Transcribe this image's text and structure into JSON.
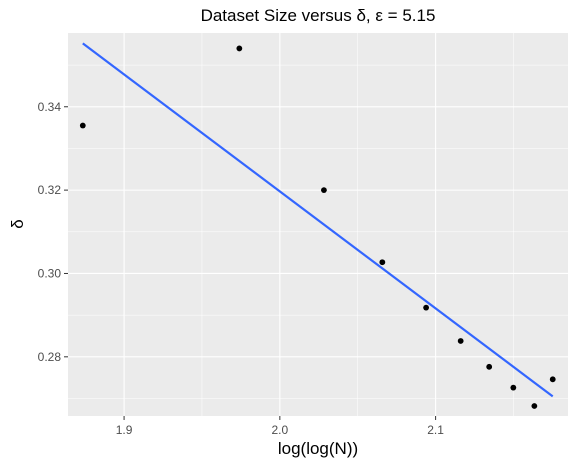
{
  "chart_data": {
    "type": "scatter",
    "title": "Dataset Size versus δ, ε = 5.15",
    "xlabel": "log(log(N))",
    "ylabel": "δ",
    "xlim": [
      1.864,
      2.185
    ],
    "ylim": [
      0.2658,
      0.3577
    ],
    "x_ticks": [
      1.9,
      2.0,
      2.1
    ],
    "x_tick_labels": [
      "1.9",
      "2.0",
      "2.1"
    ],
    "y_ticks": [
      0.28,
      0.3,
      0.32,
      0.34
    ],
    "y_tick_labels": [
      "0.28",
      "0.30",
      "0.32",
      "0.34"
    ],
    "grid": true,
    "points": [
      {
        "x": 1.8735,
        "y": 0.3355
      },
      {
        "x": 1.974,
        "y": 0.354
      },
      {
        "x": 2.0283,
        "y": 0.32
      },
      {
        "x": 2.0658,
        "y": 0.3027
      },
      {
        "x": 2.0939,
        "y": 0.2918
      },
      {
        "x": 2.1161,
        "y": 0.2838
      },
      {
        "x": 2.1344,
        "y": 0.2776
      },
      {
        "x": 2.1499,
        "y": 0.2726
      },
      {
        "x": 2.1634,
        "y": 0.2682
      },
      {
        "x": 2.1752,
        "y": 0.2746
      }
    ],
    "fit_line": {
      "x": [
        1.8735,
        2.1752
      ],
      "y": [
        0.3552,
        0.2705
      ],
      "color": "#3366FF"
    },
    "colors": {
      "panel": "#EBEBEB",
      "grid": "#FFFFFF",
      "point": "#000000"
    }
  }
}
